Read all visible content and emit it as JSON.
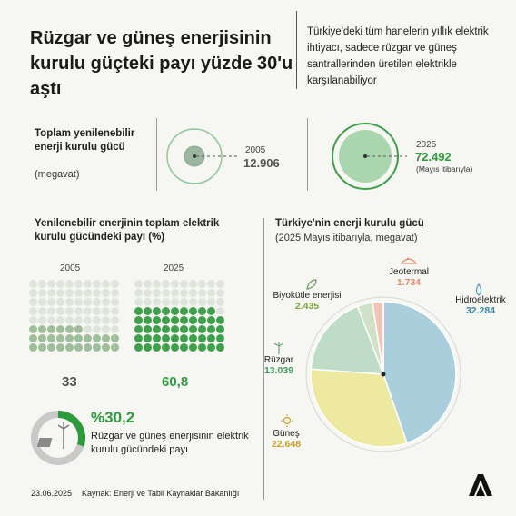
{
  "header": {
    "title": "Rüzgar ve güneş enerjisinin kurulu güçteki payı yüzde 30'u aştı",
    "intro": "Türkiye'deki tüm hanelerin yıllık elektrik ihtiyacı, sadece rüzgar ve güneş santrallerinden üretilen elektrikle karşılanabiliyor"
  },
  "capacity": {
    "title": "Toplam yenilenebilir enerji kurulu gücü",
    "unit": "(megavat)",
    "y2005": {
      "year": "2005",
      "value": "12.906"
    },
    "y2025": {
      "year": "2025",
      "value": "72.492",
      "note": "(Mayıs itibarıyla)"
    }
  },
  "share": {
    "title": "Yenilenebilir enerjinin toplam elektrik kurulu gücündeki payı (%)",
    "y2005": {
      "year": "2005",
      "value": "33"
    },
    "y2025": {
      "year": "2025",
      "value": "60,8"
    },
    "highlight": {
      "value": "%30,2",
      "label": "Rüzgar ve güneş enerjisinin elektrik kurulu gücündeki payı"
    }
  },
  "pie": {
    "title": "Türkiye'nin enerji kurulu gücü",
    "subtitle": "(2025 Mayıs itibarıyla, megavat)"
  },
  "chart_data": [
    {
      "type": "scatter",
      "title": "Toplam yenilenebilir enerji kurulu gücü",
      "categories": [
        "2005",
        "2025"
      ],
      "values": [
        12906,
        72492
      ],
      "unit": "megavat"
    },
    {
      "type": "bar",
      "title": "Yenilenebilir enerjinin toplam elektrik kurulu gücündeki payı (%)",
      "categories": [
        "2005",
        "2025"
      ],
      "values": [
        33,
        60.8
      ],
      "ylim": [
        0,
        100
      ]
    },
    {
      "type": "pie",
      "title": "Türkiye'nin enerji kurulu gücü",
      "subtitle": "(2025 Mayıs itibarıyla, megavat)",
      "slices": [
        {
          "label": "Hidroelektrik",
          "value": 32284,
          "display": "32.284",
          "color": "#a9cfdc"
        },
        {
          "label": "Güneş",
          "value": 22648,
          "display": "22.648",
          "color": "#ede9a0"
        },
        {
          "label": "Rüzgar",
          "value": 13039,
          "display": "13.039",
          "color": "#bfdcc7"
        },
        {
          "label": "Biyokütle enerjisi",
          "value": 2435,
          "display": "2.435",
          "color": "#cfe1c7"
        },
        {
          "label": "Jeotermal",
          "value": 1734,
          "display": "1.734",
          "color": "#f0c4b8"
        }
      ]
    }
  ],
  "footer": {
    "date": "23.06.2025",
    "source": "Kaynak: Enerji ve Tabii Kaynaklar Bakanlığı",
    "logo": "AA"
  },
  "colors": {
    "green": "#2e9a3e",
    "light_green": "#c3dcc0",
    "grey": "#777777"
  }
}
